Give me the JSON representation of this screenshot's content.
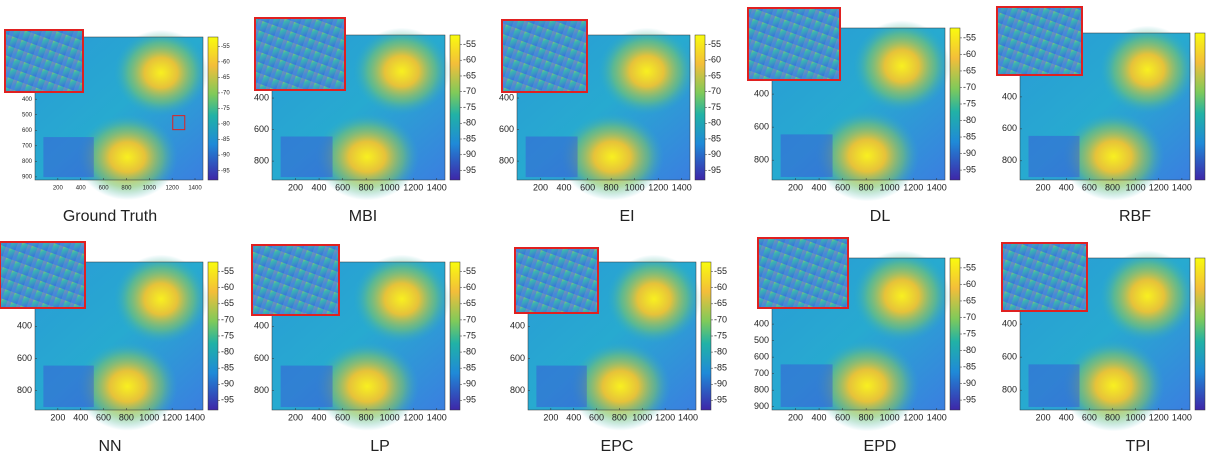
{
  "panels": [
    {
      "label": "Ground Truth",
      "xlim": [
        0,
        1470
      ],
      "ylim": [
        0,
        920
      ],
      "clim": [
        -98,
        -52
      ],
      "xticks": [
        200,
        400,
        600,
        800,
        1000,
        1200,
        1400
      ],
      "yticks": [
        400,
        500,
        600,
        700,
        800,
        900
      ],
      "colorbar_ticks": [
        -55,
        -60,
        -65,
        -70,
        -75,
        -80,
        -85,
        -90,
        -95
      ]
    },
    {
      "label": "MBI",
      "xlim": [
        0,
        1470
      ],
      "ylim": [
        0,
        920
      ],
      "clim": [
        -98,
        -52
      ],
      "xticks": [
        200,
        400,
        600,
        800,
        1000,
        1200,
        1400
      ],
      "yticks": [
        400,
        600,
        800
      ],
      "colorbar_ticks": [
        -55,
        -60,
        -65,
        -70,
        -75,
        -80,
        -85,
        -90,
        -95
      ]
    },
    {
      "label": "EI",
      "xlim": [
        0,
        1470
      ],
      "ylim": [
        0,
        920
      ],
      "clim": [
        -98,
        -52
      ],
      "xticks": [
        200,
        400,
        600,
        800,
        1000,
        1200,
        1400
      ],
      "yticks": [
        400,
        600,
        800
      ],
      "colorbar_ticks": [
        -55,
        -60,
        -65,
        -70,
        -75,
        -80,
        -85,
        -90,
        -95
      ]
    },
    {
      "label": "DL",
      "xlim": [
        0,
        1470
      ],
      "ylim": [
        0,
        920
      ],
      "clim": [
        -98,
        -52
      ],
      "xticks": [
        200,
        400,
        600,
        800,
        1000,
        1200,
        1400
      ],
      "yticks": [
        400,
        600,
        800
      ],
      "colorbar_ticks": [
        -55,
        -60,
        -65,
        -70,
        -75,
        -80,
        -85,
        -90,
        -95
      ]
    },
    {
      "label": "RBF",
      "xlim": [
        0,
        1470
      ],
      "ylim": [
        0,
        920
      ],
      "clim": [
        -98,
        -52
      ],
      "xticks": [
        200,
        400,
        600,
        800,
        1000,
        1200,
        1400
      ],
      "yticks": [
        400,
        600,
        800
      ]
    },
    {
      "label": "NN",
      "xlim": [
        0,
        1470
      ],
      "ylim": [
        0,
        920
      ],
      "clim": [
        -98,
        -52
      ],
      "xticks": [
        200,
        400,
        600,
        800,
        1000,
        1200,
        1400
      ],
      "yticks": [
        400,
        600,
        800
      ],
      "colorbar_ticks": [
        -55,
        -60,
        -65,
        -70,
        -75,
        -80,
        -85,
        -90,
        -95
      ]
    },
    {
      "label": "LP",
      "xlim": [
        0,
        1470
      ],
      "ylim": [
        0,
        920
      ],
      "clim": [
        -98,
        -52
      ],
      "xticks": [
        200,
        400,
        600,
        800,
        1000,
        1200,
        1400
      ],
      "yticks": [
        400,
        600,
        800
      ],
      "colorbar_ticks": [
        -55,
        -60,
        -65,
        -70,
        -75,
        -80,
        -85,
        -90,
        -95
      ]
    },
    {
      "label": "EPC",
      "xlim": [
        0,
        1470
      ],
      "ylim": [
        0,
        920
      ],
      "clim": [
        -98,
        -52
      ],
      "xticks": [
        200,
        400,
        600,
        800,
        1000,
        1200,
        1400
      ],
      "yticks": [
        400,
        600,
        800
      ],
      "colorbar_ticks": [
        -55,
        -60,
        -65,
        -70,
        -75,
        -80,
        -85,
        -90,
        -95
      ]
    },
    {
      "label": "EPD",
      "xlim": [
        0,
        1470
      ],
      "ylim": [
        0,
        920
      ],
      "clim": [
        -98,
        -52
      ],
      "xticks": [
        200,
        400,
        600,
        800,
        1000,
        1200,
        1400
      ],
      "yticks": [
        400,
        500,
        600,
        700,
        800,
        900
      ],
      "colorbar_ticks": [
        -55,
        -60,
        -65,
        -70,
        -75,
        -80,
        -85,
        -90,
        -95
      ]
    },
    {
      "label": "TPI",
      "xlim": [
        0,
        1470
      ],
      "ylim": [
        0,
        920
      ],
      "clim": [
        -98,
        -52
      ],
      "xticks": [
        200,
        400,
        600,
        800,
        1000,
        1200,
        1400
      ],
      "yticks": [
        400,
        600,
        800
      ]
    }
  ]
}
